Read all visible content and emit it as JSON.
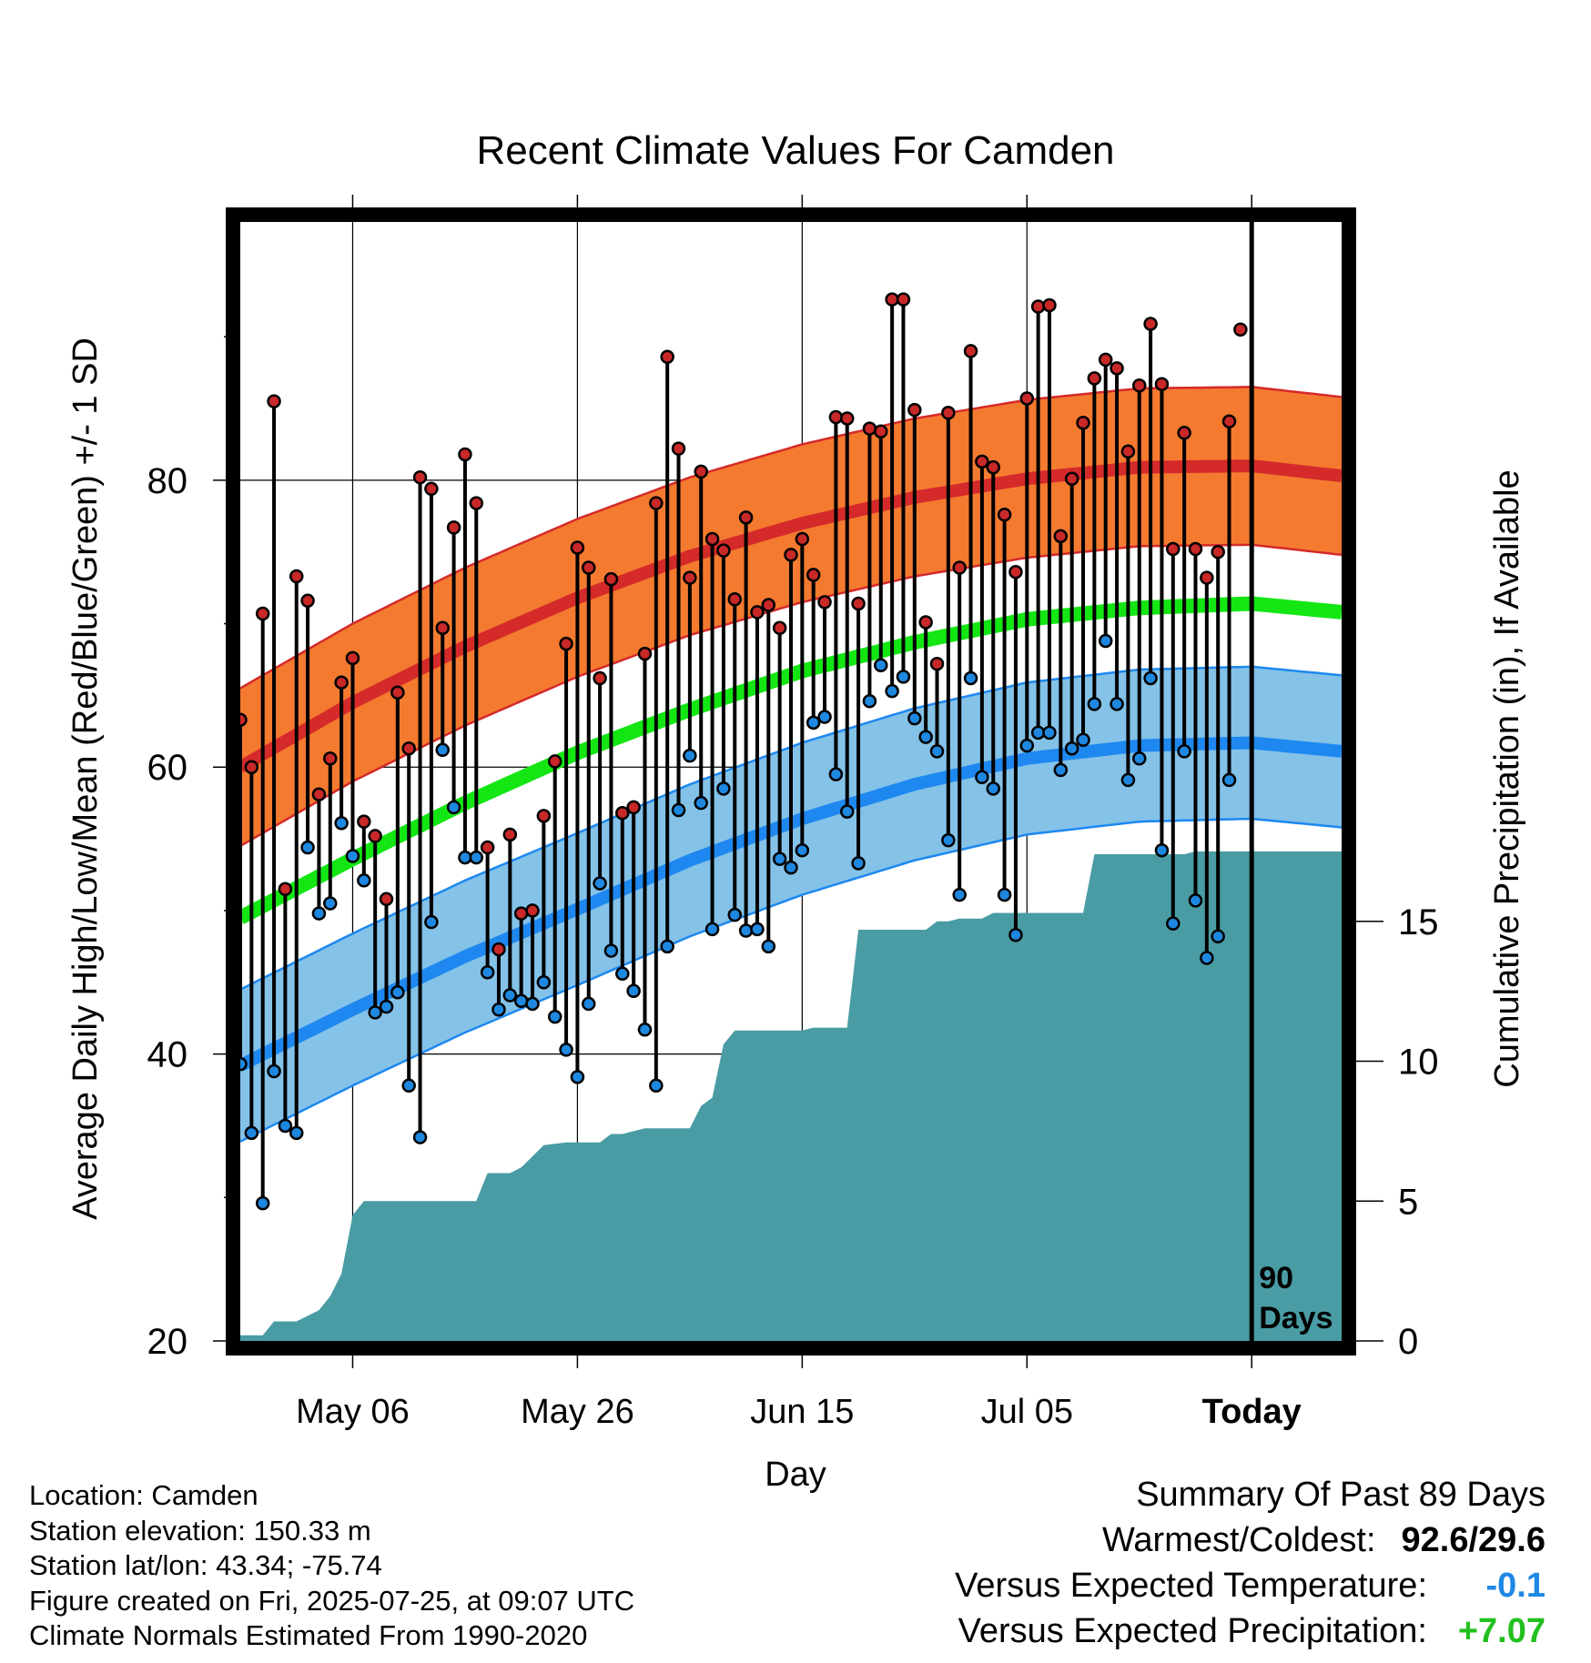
{
  "chart_data": {
    "type": "line",
    "title": "Recent Climate Values For Camden",
    "xlabel": "Day",
    "ylabel": "Average Daily High/Low/Mean (Red/Blue/Green) +/- 1 SD",
    "y2label": "Cumulative Precipitation (in), If Available",
    "ylim": [
      20,
      98
    ],
    "y2lim": [
      0,
      40
    ],
    "yticks": [
      20,
      40,
      60,
      80
    ],
    "y2ticks": [
      0,
      5,
      10,
      15
    ],
    "xlim": [
      -89,
      9
    ],
    "xticks": [
      {
        "day": -79,
        "label": "May 06"
      },
      {
        "day": -59,
        "label": "May 26"
      },
      {
        "day": -39,
        "label": "Jun 15"
      },
      {
        "day": -19,
        "label": "Jul 05"
      },
      {
        "day": 1,
        "label": "Today"
      }
    ],
    "today_marker": {
      "day": 1,
      "label_line1": "90",
      "label_line2": "Days"
    },
    "grid": true,
    "colors": {
      "high_band": "#f47a30",
      "high_line": "#d42a2a",
      "low_band": "#84c2e8",
      "low_line": "#1e88f0",
      "mean_line": "#14e614",
      "precip": "#4a9ca4",
      "high_dot": "#c82828",
      "low_dot": "#1e88e0"
    },
    "normals": {
      "days": [
        -89,
        -79,
        -69,
        -59,
        -49,
        -39,
        -29,
        -19,
        -9,
        1,
        9
      ],
      "high": [
        60.0,
        64.5,
        68.4,
        71.8,
        74.7,
        77.0,
        78.8,
        80.1,
        80.9,
        81.0,
        80.3
      ],
      "high_sd": 5.5,
      "low": [
        39.2,
        43.1,
        46.8,
        50.1,
        53.5,
        56.4,
        58.8,
        60.6,
        61.5,
        61.7,
        61.1
      ],
      "low_sd": 5.3,
      "mean": [
        49.5,
        53.6,
        57.5,
        61.0,
        64.0,
        66.7,
        68.7,
        70.3,
        71.1,
        71.4,
        70.8
      ]
    },
    "series": [
      {
        "name": "High",
        "start_day": -89,
        "values": [
          63.3,
          60.0,
          70.7,
          85.5,
          51.5,
          73.3,
          71.6,
          58.1,
          60.6,
          65.9,
          67.6,
          56.2,
          55.2,
          50.8,
          65.2,
          61.3,
          80.2,
          79.4,
          69.7,
          76.7,
          81.8,
          78.4,
          54.4,
          47.3,
          55.3,
          49.8,
          50.0,
          56.6,
          60.4,
          68.6,
          75.3,
          73.9,
          66.2,
          73.1,
          56.8,
          57.2,
          67.9,
          78.4,
          88.6,
          82.2,
          73.2,
          80.6,
          75.9,
          75.1,
          71.7,
          77.4,
          70.8,
          71.3,
          69.7,
          74.8,
          75.9,
          73.4,
          71.5,
          84.4,
          84.3,
          71.4,
          83.6,
          83.4,
          92.6,
          92.6,
          84.9,
          70.1,
          67.2,
          84.7,
          73.9,
          89.0,
          81.3,
          80.9,
          77.6,
          73.6,
          85.7,
          92.1,
          92.2,
          76.1,
          80.1,
          84.0,
          87.1,
          88.4,
          87.8,
          82.0,
          86.6,
          90.9,
          86.7,
          75.2,
          83.3,
          75.2,
          73.2,
          75.0,
          84.1,
          90.5
        ]
      },
      {
        "name": "Low",
        "start_day": -89,
        "values": [
          39.3,
          34.5,
          29.6,
          38.8,
          35.0,
          34.5,
          54.4,
          49.8,
          50.5,
          56.1,
          53.8,
          52.1,
          42.9,
          43.3,
          44.3,
          37.8,
          34.2,
          49.2,
          61.2,
          57.2,
          53.7,
          53.7,
          45.7,
          43.1,
          44.1,
          43.7,
          43.5,
          45.0,
          42.6,
          40.3,
          38.4,
          43.5,
          51.9,
          47.2,
          45.6,
          44.4,
          41.7,
          37.8,
          47.5,
          57.0,
          60.8,
          57.5,
          48.7,
          58.5,
          49.7,
          48.6,
          48.7,
          47.5,
          53.6,
          53.0,
          54.2,
          63.1,
          63.5,
          59.5,
          56.9,
          53.3,
          64.6,
          67.1,
          65.3,
          66.3,
          63.4,
          62.1,
          61.1,
          54.9,
          51.1,
          66.2,
          59.3,
          58.5,
          51.1,
          48.3,
          61.5,
          62.4,
          62.4,
          59.8,
          61.3,
          61.9,
          64.4,
          68.8,
          64.4,
          59.1,
          60.6,
          66.2,
          54.2,
          49.1,
          61.1,
          50.7,
          46.7,
          48.2,
          59.1
        ]
      }
    ],
    "precip": {
      "days": [
        -89,
        -87,
        -86,
        -85,
        -84,
        -82,
        -81,
        -80,
        -79,
        -78,
        -77,
        -76,
        -74,
        -72,
        -70,
        -68,
        -67,
        -65,
        -64,
        -62,
        -60,
        -59,
        -57,
        -56,
        -55,
        -53,
        -52,
        -51,
        -49,
        -48,
        -47,
        -46,
        -45,
        -44,
        -43,
        -42,
        -40,
        -39,
        -38,
        -37,
        -36,
        -35,
        -34,
        -33,
        -31,
        -29,
        -28,
        -27,
        -26,
        -25,
        -24,
        -23,
        -22,
        -21,
        -20,
        -19,
        -18,
        -17,
        -16,
        -15,
        -14,
        -13,
        -12,
        -10,
        -9,
        -8,
        -7,
        -6,
        -5,
        -4,
        -3,
        -2,
        0,
        1,
        9
      ],
      "values": [
        0.2,
        0.2,
        0.7,
        0.7,
        0.7,
        1.1,
        1.6,
        2.4,
        4.5,
        5.0,
        5.0,
        5.0,
        5.0,
        5.0,
        5.0,
        5.0,
        6.0,
        6.0,
        6.2,
        7.0,
        7.1,
        7.1,
        7.1,
        7.4,
        7.4,
        7.6,
        7.6,
        7.6,
        7.6,
        8.4,
        8.7,
        10.6,
        11.1,
        11.1,
        11.1,
        11.1,
        11.1,
        11.1,
        11.2,
        11.2,
        11.2,
        11.2,
        14.7,
        14.7,
        14.7,
        14.7,
        14.7,
        15.0,
        15.0,
        15.1,
        15.1,
        15.1,
        15.3,
        15.3,
        15.3,
        15.3,
        15.3,
        15.3,
        15.3,
        15.3,
        15.3,
        17.4,
        17.4,
        17.4,
        17.4,
        17.4,
        17.4,
        17.4,
        17.4,
        17.5,
        17.5,
        17.5,
        17.5,
        17.5,
        17.5
      ]
    }
  },
  "footer": {
    "location": "Location: Camden",
    "elevation": "Station elevation: 150.33 m",
    "latlon": "Station lat/lon: 43.34; -75.74",
    "created": "Figure created on Fri, 2025-07-25, at 09:07 UTC",
    "normals": "Climate Normals Estimated From 1990-2020"
  },
  "summary": {
    "heading": "Summary Of Past 89 Days",
    "warmest_label": "Warmest/Coldest:",
    "warmest_value": "92.6/29.6",
    "temp_label": "Versus Expected Temperature:",
    "temp_value": "-0.1",
    "precip_label": "Versus Expected Precipitation:",
    "precip_value": "+7.07"
  }
}
